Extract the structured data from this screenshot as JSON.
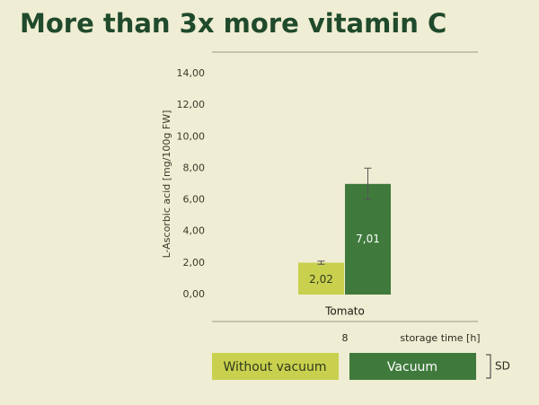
{
  "chart_data": {
    "type": "bar",
    "title": "More than 3x more vitamin C",
    "ylabel": "L-Ascorbic acid [mg/100g FW]",
    "xlabel": "storage time [h]",
    "categories": [
      "Tomato"
    ],
    "x": [
      8
    ],
    "series": [
      {
        "name": "Without vacuum",
        "color": "#c9d04e",
        "text_color": "#2f3a1c",
        "values": [
          2.02
        ],
        "value_labels": [
          "2,02"
        ],
        "errors": [
          0.1
        ]
      },
      {
        "name": "Vacuum",
        "color": "#3f7a3c",
        "text_color": "#ffffff",
        "values": [
          7.01
        ],
        "value_labels": [
          "7,01"
        ],
        "errors": [
          1.0
        ]
      }
    ],
    "error_label": "SD",
    "ylim": [
      0,
      14
    ],
    "yticks": [
      {
        "value": 0,
        "label": "0,00"
      },
      {
        "value": 2,
        "label": "2,00"
      },
      {
        "value": 4,
        "label": "4,00"
      },
      {
        "value": 6,
        "label": "6,00"
      },
      {
        "value": 8,
        "label": "8,00"
      },
      {
        "value": 10,
        "label": "10,00"
      },
      {
        "value": 12,
        "label": "12,00"
      },
      {
        "value": 14,
        "label": "14,00"
      }
    ]
  }
}
